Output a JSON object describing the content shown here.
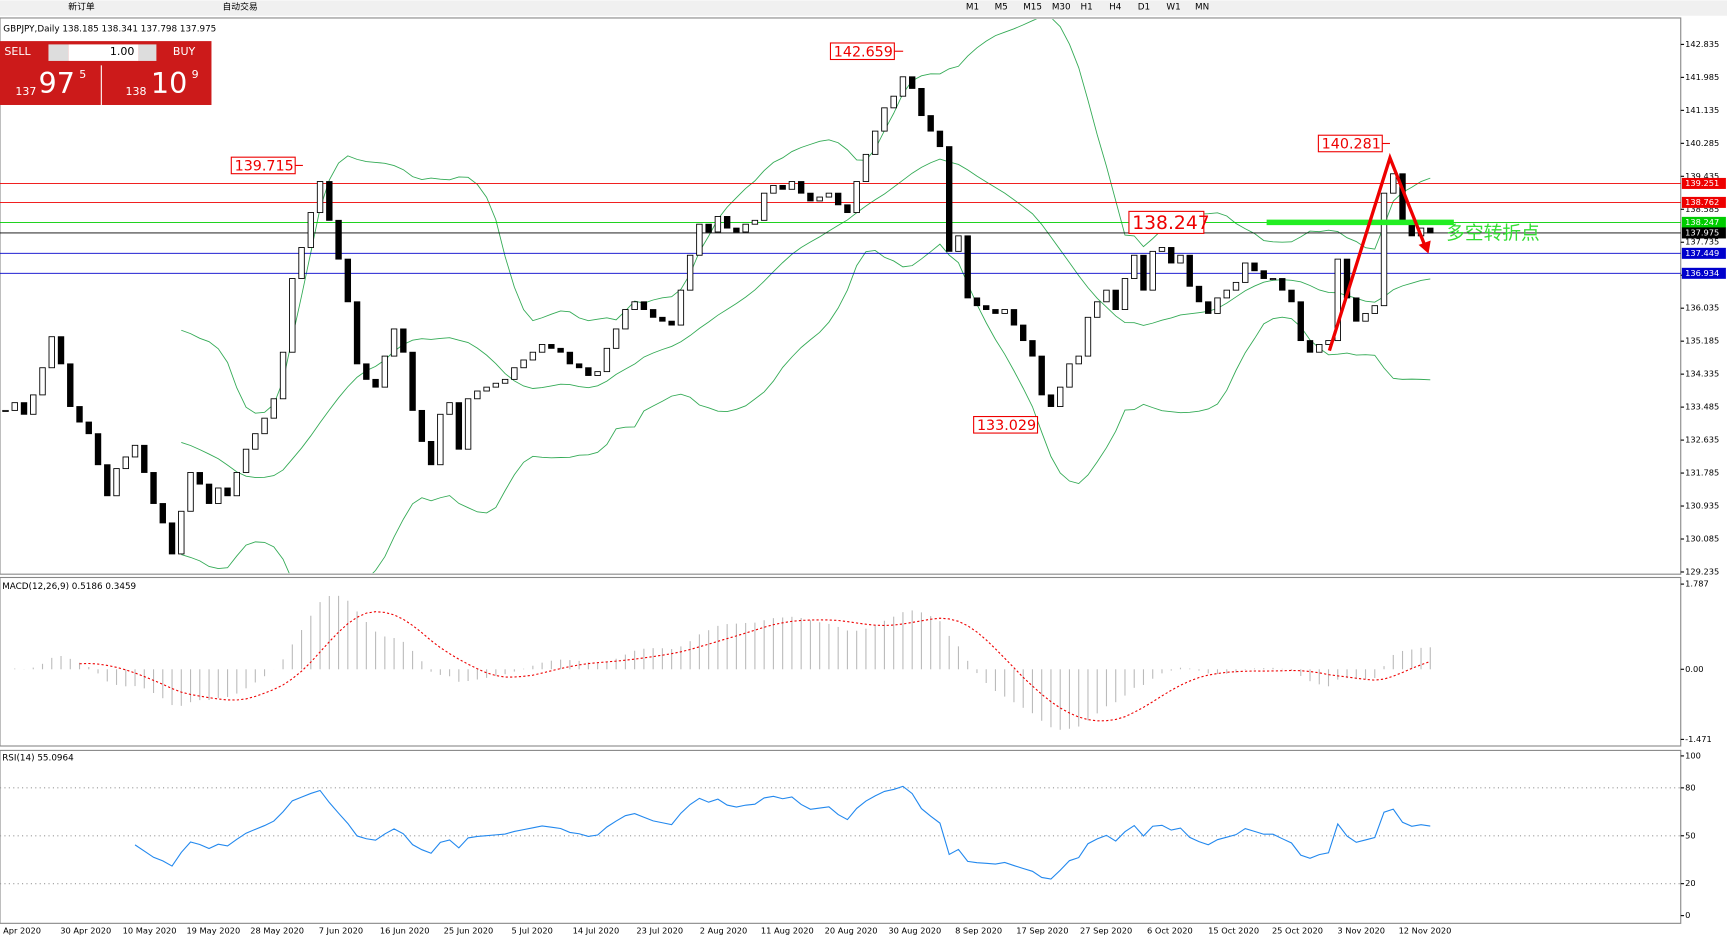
{
  "toolbar": {
    "new_order": "新订单",
    "auto_trading": "自动交易",
    "timeframes": [
      "M1",
      "M5",
      "M15",
      "M30",
      "H1",
      "H4",
      "D1",
      "W1",
      "MN"
    ]
  },
  "trade_panel": {
    "sell": "SELL",
    "buy": "BUY",
    "lots": "1.00",
    "bid": {
      "big": "137",
      "main": "97",
      "pip": "5"
    },
    "ask": {
      "big": "138",
      "main": "10",
      "pip": "9"
    }
  },
  "chart_data": {
    "type": "candlestick",
    "title": "GBPJPY,Daily  138.185 138.341 137.798 137.975",
    "closes": [
      133.4,
      133.6,
      133.3,
      133.8,
      134.5,
      135.3,
      134.6,
      133.5,
      133.1,
      132.8,
      132.0,
      131.2,
      131.9,
      132.2,
      132.5,
      131.8,
      131.0,
      130.5,
      129.7,
      130.8,
      131.8,
      131.5,
      131.0,
      131.4,
      131.2,
      131.8,
      132.4,
      132.8,
      133.2,
      133.7,
      134.9,
      136.8,
      137.6,
      138.5,
      139.3,
      138.3,
      137.3,
      136.2,
      134.6,
      134.2,
      134.0,
      134.8,
      135.5,
      134.9,
      133.4,
      132.6,
      132.0,
      133.3,
      133.6,
      132.4,
      133.7,
      133.9,
      134.0,
      134.1,
      134.2,
      134.5,
      134.7,
      134.9,
      135.1,
      135.0,
      134.9,
      134.6,
      134.5,
      134.3,
      134.4,
      135.0,
      135.5,
      136.0,
      136.2,
      136.0,
      135.8,
      135.7,
      135.6,
      136.5,
      137.4,
      138.2,
      138.0,
      138.4,
      138.1,
      138.0,
      138.2,
      138.3,
      139.0,
      139.2,
      139.1,
      139.3,
      139.0,
      138.8,
      138.9,
      139.0,
      138.7,
      138.5,
      139.3,
      140.0,
      140.6,
      141.2,
      141.5,
      142.0,
      141.7,
      141.0,
      140.6,
      140.2,
      137.5,
      137.9,
      136.3,
      136.1,
      136.0,
      135.9,
      136.0,
      135.6,
      135.2,
      134.8,
      133.8,
      133.5,
      134.0,
      134.6,
      134.8,
      135.8,
      136.2,
      136.5,
      136.0,
      136.8,
      137.4,
      136.5,
      137.5,
      137.6,
      137.2,
      137.4,
      136.6,
      136.2,
      135.9,
      136.3,
      136.5,
      136.7,
      137.2,
      137.0,
      136.8,
      136.8,
      136.5,
      136.2,
      135.2,
      134.9,
      135.1,
      135.2,
      137.3,
      136.3,
      135.7,
      135.9,
      136.1,
      139.0,
      139.5,
      138.3,
      137.9,
      138.1,
      137.975
    ],
    "ylim": [
      129.235,
      142.835
    ],
    "yticks": [
      142.835,
      141.985,
      141.135,
      140.285,
      139.435,
      138.585,
      137.735,
      136.885,
      136.035,
      135.185,
      134.335,
      133.485,
      132.635,
      131.785,
      130.935,
      130.085,
      129.235
    ],
    "levels": [
      {
        "value": 139.251,
        "color": "#ee0000"
      },
      {
        "value": 138.762,
        "color": "#ee0000"
      },
      {
        "value": 138.247,
        "color": "#00cc00"
      },
      {
        "value": 137.975,
        "color": "#000000"
      },
      {
        "value": 137.449,
        "color": "#0000cc"
      },
      {
        "value": 136.934,
        "color": "#0000cc"
      }
    ],
    "annotations": [
      142.659,
      139.715,
      133.029,
      140.281,
      138.247
    ],
    "turn_label": "多空转折点",
    "dates": [
      "Apr 2020",
      "30 Apr 2020",
      "10 May 2020",
      "19 May 2020",
      "28 May 2020",
      "7 Jun 2020",
      "16 Jun 2020",
      "25 Jun 2020",
      "5 Jul 2020",
      "14 Jul 2020",
      "23 Jul 2020",
      "2 Aug 2020",
      "11 Aug 2020",
      "20 Aug 2020",
      "30 Aug 2020",
      "8 Sep 2020",
      "17 Sep 2020",
      "27 Sep 2020",
      "6 Oct 2020",
      "15 Oct 2020",
      "25 Oct 2020",
      "3 Nov 2020",
      "12 Nov 2020"
    ],
    "macd": {
      "title": "MACD(12,26,9) 0.5186 0.3459",
      "ylim": [
        -1.471,
        1.787
      ],
      "yticks": [
        1.787,
        {
          "value": 0,
          "label": "0.00"
        },
        -1.471
      ]
    },
    "rsi": {
      "title": "RSI(14) 55.0964",
      "ylim": [
        0,
        100
      ],
      "yticks": [
        100,
        80,
        50,
        20,
        0
      ]
    }
  }
}
